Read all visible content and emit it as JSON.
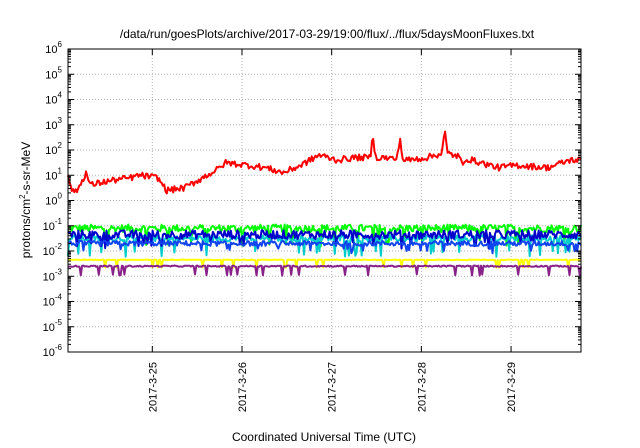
{
  "chart_data": {
    "type": "line",
    "title": "/data/run/goesPlots/archive/2017-03-29/19:00/flux/../flux/5daysMoonFluxes.txt",
    "xlabel": "Coordinated Universal Time (UTC)",
    "ylabel": "protons/cm²-s-sr-MeV",
    "ylabel_parts": {
      "before": "protons/cm",
      "sup": "2",
      "after": "-s-sr-MeV"
    },
    "yscale": "log",
    "ylim_exponents": [
      -6,
      6
    ],
    "y_tick_base": "10",
    "y_tick_exponents": [
      "-6",
      "-5",
      "-4",
      "-3",
      "-2",
      "-1",
      "0",
      "1",
      "2",
      "3",
      "4",
      "5",
      "6"
    ],
    "xlim_days": [
      2017.0324,
      2017.033
    ],
    "x_ticks": [
      "2017-3-25",
      "2017-3-26",
      "2017-3-27",
      "2017-3-28",
      "2017-3-29"
    ],
    "grid": true,
    "series": [
      {
        "color": "#ff0000",
        "base": [
          [
            0,
            0.9
          ],
          [
            0.06,
            0.3
          ],
          [
            0.12,
            0.5
          ],
          [
            0.2,
            1.1
          ],
          [
            0.25,
            0.6
          ],
          [
            0.35,
            0.7
          ],
          [
            0.5,
            0.8
          ],
          [
            0.7,
            0.9
          ],
          [
            0.8,
            1.0
          ],
          [
            1.0,
            0.9
          ],
          [
            1.1,
            0.4
          ],
          [
            1.3,
            0.5
          ],
          [
            1.4,
            0.7
          ],
          [
            1.5,
            0.9
          ],
          [
            1.7,
            1.3
          ],
          [
            1.75,
            1.5
          ],
          [
            2.0,
            1.4
          ],
          [
            2.2,
            1.3
          ],
          [
            2.4,
            1.1
          ],
          [
            2.6,
            1.4
          ],
          [
            2.8,
            1.8
          ],
          [
            3.0,
            1.6
          ],
          [
            3.2,
            1.7
          ],
          [
            3.5,
            1.7
          ],
          [
            3.8,
            1.6
          ],
          [
            4.0,
            1.7
          ],
          [
            4.2,
            1.9
          ],
          [
            4.5,
            1.6
          ],
          [
            4.8,
            1.3
          ],
          [
            5.0,
            1.4
          ],
          [
            5.35,
            1.3
          ],
          [
            5.6,
            1.6
          ]
        ],
        "noise": 0.25,
        "spikes": [
          [
            3.4,
            0.9
          ],
          [
            3.7,
            0.9
          ],
          [
            4.2,
            0.9
          ],
          [
            4.4,
            -0.4
          ]
        ]
      },
      {
        "color": "#00ff00",
        "level": -1.1,
        "noise": 0.3,
        "dips": -0.6
      },
      {
        "color": "#00cccc",
        "level": -1.5,
        "noise": 0.25,
        "dips": -0.6
      },
      {
        "color": "#0000cc",
        "level": -1.35,
        "noise": 0.35,
        "dips": -0.4
      },
      {
        "color": "#1144ee",
        "level": -1.7,
        "noise": 0.2,
        "dips": -0.3
      },
      {
        "color": "#ffff00",
        "level": -2.35,
        "noise": 0.02,
        "dips": -0.3
      },
      {
        "color": "#882288",
        "level": -2.6,
        "noise": 0.05,
        "dips": -0.35
      }
    ]
  }
}
